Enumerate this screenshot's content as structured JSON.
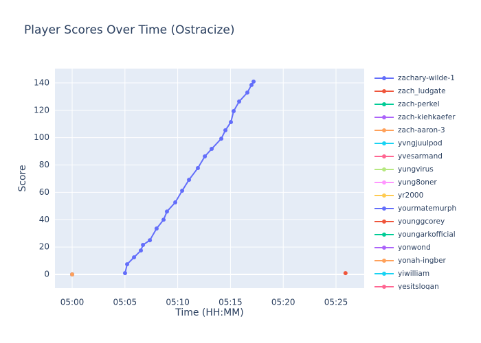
{
  "chart_data": {
    "type": "line",
    "title": "Player Scores Over Time (Ostracize)",
    "x_label": "Time (HH:MM)",
    "y_label": "Score",
    "xlim": [
      298.37,
      327.67
    ],
    "ylim": [
      -10,
      150.5
    ],
    "xticks": [
      {
        "value": 300,
        "label": "05:00"
      },
      {
        "value": 305,
        "label": "05:05"
      },
      {
        "value": 310,
        "label": "05:10"
      },
      {
        "value": 315,
        "label": "05:15"
      },
      {
        "value": 320,
        "label": "05:20"
      },
      {
        "value": 325,
        "label": "05:25"
      }
    ],
    "yticks": [
      0,
      20,
      40,
      60,
      80,
      100,
      120,
      140
    ],
    "grid": true,
    "series": [
      {
        "name": "zachary-wilde-1",
        "color": "#636efa",
        "x": [
          305.01,
          305.21,
          305.86,
          306.51,
          306.71,
          307.36,
          308.0,
          308.66,
          308.98,
          309.77,
          310.42,
          311.07,
          311.91,
          312.57,
          313.22,
          314.13,
          314.52,
          315.04,
          315.3,
          315.82,
          316.6,
          316.99,
          317.19
        ],
        "values": [
          1,
          7.5,
          12.5,
          17.5,
          21.6,
          25,
          33.6,
          40,
          46,
          52.7,
          61.2,
          69.2,
          77.8,
          86.3,
          91.8,
          99.3,
          105.4,
          111.4,
          119.4,
          126.4,
          133,
          138.5,
          141
        ]
      },
      {
        "name": "zach_ludgate",
        "color": "#ef553b",
        "x": [
          325.9
        ],
        "values": [
          1
        ]
      },
      {
        "name": "zach-perkel",
        "color": "#00cc96",
        "x": [
          300
        ],
        "values": [
          0
        ]
      },
      {
        "name": "zach-kiehkaefer",
        "color": "#ab63fa",
        "x": [
          300
        ],
        "values": [
          0
        ]
      },
      {
        "name": "zach-aaron-3",
        "color": "#ffa15a",
        "x": [
          300
        ],
        "values": [
          0
        ]
      },
      {
        "name": "yvngjuulpod",
        "color": "#19d3f3",
        "x": [
          300
        ],
        "values": [
          0
        ]
      },
      {
        "name": "yvesarmand",
        "color": "#ff6692",
        "x": [
          300
        ],
        "values": [
          0
        ]
      },
      {
        "name": "yungvirus",
        "color": "#b6e880",
        "x": [
          300
        ],
        "values": [
          0
        ]
      },
      {
        "name": "yung8oner",
        "color": "#ff97ff",
        "x": [
          300
        ],
        "values": [
          0
        ]
      },
      {
        "name": "yr2000",
        "color": "#fecb52",
        "x": [
          300
        ],
        "values": [
          0
        ]
      },
      {
        "name": "yourmatemurph",
        "color": "#636efa",
        "x": [
          300
        ],
        "values": [
          0
        ]
      },
      {
        "name": "younggcorey",
        "color": "#ef553b",
        "x": [
          300
        ],
        "values": [
          0
        ]
      },
      {
        "name": "youngarkofficial",
        "color": "#00cc96",
        "x": [
          300
        ],
        "values": [
          0
        ]
      },
      {
        "name": "yonwond",
        "color": "#ab63fa",
        "x": [
          300
        ],
        "values": [
          0
        ]
      },
      {
        "name": "yonah-ingber",
        "color": "#ffa15a",
        "x": [
          300
        ],
        "values": [
          0
        ]
      },
      {
        "name": "yiwilliam",
        "color": "#19d3f3",
        "x": [],
        "values": []
      },
      {
        "name": "yesitslogan",
        "color": "#ff6692",
        "x": [],
        "values": []
      }
    ]
  }
}
